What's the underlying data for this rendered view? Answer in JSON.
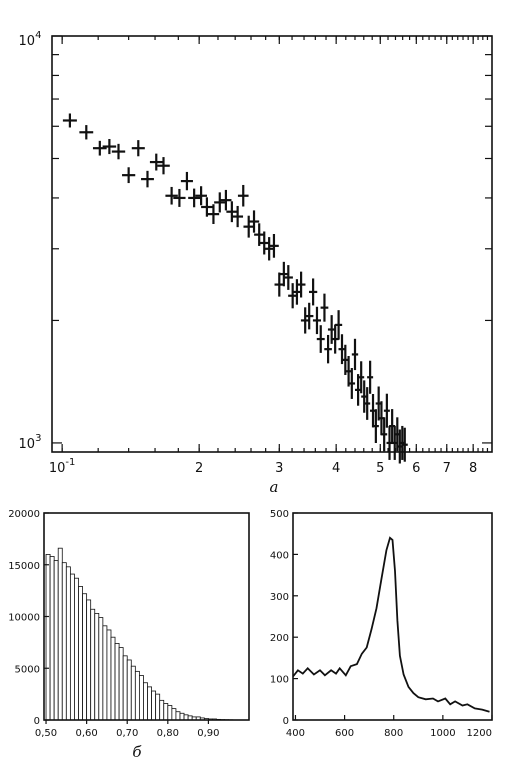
{
  "panels": {
    "a_label": "a",
    "b_label": "б"
  },
  "chart_data": [
    {
      "type": "scatter",
      "id": "a",
      "xscale": "log",
      "yscale": "log",
      "xlim": [
        0.095,
        0.88
      ],
      "ylim": [
        950,
        10000
      ],
      "x_tick_labels": [
        "10^-1",
        "2",
        "3",
        "4",
        "5",
        "6",
        "7",
        "8"
      ],
      "y_tick_labels": [
        "10^3",
        "10^4"
      ],
      "points": [
        [
          0.104,
          6200
        ],
        [
          0.113,
          5800
        ],
        [
          0.121,
          5300
        ],
        [
          0.127,
          5350
        ],
        [
          0.133,
          5200
        ],
        [
          0.14,
          4550
        ],
        [
          0.147,
          5300
        ],
        [
          0.154,
          4450
        ],
        [
          0.161,
          4900
        ],
        [
          0.167,
          4800
        ],
        [
          0.174,
          4050
        ],
        [
          0.181,
          4000
        ],
        [
          0.188,
          4400
        ],
        [
          0.195,
          4000
        ],
        [
          0.202,
          4050
        ],
        [
          0.208,
          3800
        ],
        [
          0.215,
          3650
        ],
        [
          0.222,
          3900
        ],
        [
          0.229,
          3950
        ],
        [
          0.236,
          3700
        ],
        [
          0.243,
          3600
        ],
        [
          0.25,
          4050
        ],
        [
          0.257,
          3400
        ],
        [
          0.264,
          3500
        ],
        [
          0.271,
          3250
        ],
        [
          0.278,
          3100
        ],
        [
          0.285,
          3000
        ],
        [
          0.292,
          3050
        ],
        [
          0.3,
          2450
        ],
        [
          0.307,
          2600
        ],
        [
          0.314,
          2550
        ],
        [
          0.321,
          2300
        ],
        [
          0.328,
          2350
        ],
        [
          0.335,
          2450
        ],
        [
          0.342,
          2000
        ],
        [
          0.349,
          2050
        ],
        [
          0.356,
          2350
        ],
        [
          0.363,
          2000
        ],
        [
          0.37,
          1800
        ],
        [
          0.377,
          2150
        ],
        [
          0.384,
          1700
        ],
        [
          0.391,
          1900
        ],
        [
          0.398,
          1800
        ],
        [
          0.405,
          1950
        ],
        [
          0.412,
          1700
        ],
        [
          0.419,
          1600
        ],
        [
          0.426,
          1500
        ],
        [
          0.433,
          1400
        ],
        [
          0.44,
          1650
        ],
        [
          0.447,
          1350
        ],
        [
          0.454,
          1450
        ],
        [
          0.461,
          1300
        ],
        [
          0.468,
          1250
        ],
        [
          0.475,
          1450
        ],
        [
          0.482,
          1200
        ],
        [
          0.489,
          1100
        ],
        [
          0.496,
          1250
        ],
        [
          0.503,
          1150
        ],
        [
          0.51,
          1050
        ],
        [
          0.517,
          1200
        ],
        [
          0.524,
          1000
        ],
        [
          0.531,
          1100
        ],
        [
          0.538,
          1000
        ],
        [
          0.545,
          1050
        ],
        [
          0.552,
          980
        ],
        [
          0.559,
          1000
        ],
        [
          0.566,
          990
        ]
      ]
    },
    {
      "type": "bar",
      "id": "b",
      "x_tick_labels": [
        "0,50",
        "0,60",
        "0,70",
        "0,80",
        "0,90"
      ],
      "y_tick_labels": [
        "0",
        "5000",
        "10000",
        "15000",
        "20000"
      ],
      "xlim": [
        0.495,
        1.0
      ],
      "ylim": [
        0,
        20000
      ],
      "bin_starts": [
        0.5,
        0.51,
        0.52,
        0.53,
        0.54,
        0.55,
        0.56,
        0.57,
        0.58,
        0.59,
        0.6,
        0.61,
        0.62,
        0.63,
        0.64,
        0.65,
        0.66,
        0.67,
        0.68,
        0.69,
        0.7,
        0.71,
        0.72,
        0.73,
        0.74,
        0.75,
        0.76,
        0.77,
        0.78,
        0.79,
        0.8,
        0.81,
        0.82,
        0.83,
        0.84,
        0.85,
        0.86,
        0.87,
        0.88,
        0.89,
        0.9,
        0.91,
        0.92,
        0.93,
        0.94,
        0.95,
        0.96
      ],
      "values": [
        16000,
        15800,
        15400,
        16600,
        15200,
        14800,
        14100,
        13700,
        12900,
        12200,
        11600,
        10700,
        10300,
        9900,
        9100,
        8700,
        8000,
        7400,
        7000,
        6200,
        5800,
        5200,
        4700,
        4300,
        3600,
        3200,
        2800,
        2500,
        1900,
        1600,
        1400,
        1100,
        800,
        650,
        500,
        400,
        300,
        300,
        200,
        150,
        100,
        100,
        60,
        40,
        30,
        20,
        10
      ]
    },
    {
      "type": "line",
      "id": "c",
      "xlim": [
        390,
        1200
      ],
      "ylim": [
        0,
        500
      ],
      "x_tick_labels": [
        "400",
        "600",
        "800",
        "1000",
        "1200"
      ],
      "y_tick_labels": [
        "0",
        "100",
        "200",
        "300",
        "400",
        "500"
      ],
      "points": [
        [
          390,
          105
        ],
        [
          410,
          120
        ],
        [
          430,
          112
        ],
        [
          450,
          125
        ],
        [
          475,
          110
        ],
        [
          500,
          120
        ],
        [
          520,
          108
        ],
        [
          545,
          120
        ],
        [
          565,
          112
        ],
        [
          580,
          125
        ],
        [
          605,
          108
        ],
        [
          625,
          130
        ],
        [
          650,
          135
        ],
        [
          670,
          160
        ],
        [
          690,
          175
        ],
        [
          710,
          220
        ],
        [
          730,
          270
        ],
        [
          750,
          340
        ],
        [
          770,
          410
        ],
        [
          785,
          440
        ],
        [
          795,
          435
        ],
        [
          805,
          360
        ],
        [
          815,
          240
        ],
        [
          825,
          155
        ],
        [
          840,
          110
        ],
        [
          860,
          80
        ],
        [
          880,
          65
        ],
        [
          900,
          55
        ],
        [
          930,
          50
        ],
        [
          960,
          52
        ],
        [
          980,
          45
        ],
        [
          1010,
          52
        ],
        [
          1030,
          38
        ],
        [
          1050,
          45
        ],
        [
          1080,
          35
        ],
        [
          1100,
          38
        ],
        [
          1130,
          28
        ],
        [
          1160,
          25
        ],
        [
          1190,
          20
        ]
      ]
    }
  ]
}
